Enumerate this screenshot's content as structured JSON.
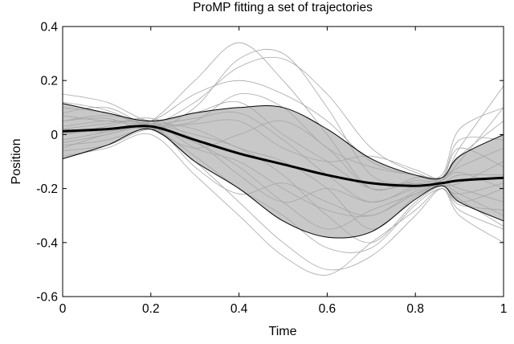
{
  "chart_data": {
    "type": "line",
    "title": "ProMP fitting a set of trajectories",
    "xlabel": "Time",
    "ylabel": "Position",
    "xlim": [
      0,
      1
    ],
    "ylim": [
      -0.6,
      0.4
    ],
    "xticks": [
      0,
      0.2,
      0.4,
      0.6,
      0.8,
      1
    ],
    "xtick_labels": [
      "0",
      "0.2",
      "0.4",
      "0.6",
      "0.8",
      "1"
    ],
    "yticks": [
      0.4,
      0.2,
      0,
      -0.2,
      -0.4,
      -0.6
    ],
    "ytick_labels": [
      "0.4",
      "0.2",
      "0",
      "-0.2",
      "-0.4",
      "-0.6"
    ],
    "grid": false,
    "legend": "none",
    "x": [
      0,
      0.1,
      0.2,
      0.3,
      0.4,
      0.5,
      0.6,
      0.7,
      0.8,
      0.86,
      0.9,
      1.0
    ],
    "mean": [
      0.012,
      0.02,
      0.03,
      -0.02,
      -0.07,
      -0.11,
      -0.15,
      -0.18,
      -0.19,
      -0.18,
      -0.17,
      -0.16
    ],
    "upper": [
      0.115,
      0.08,
      0.05,
      0.08,
      0.1,
      0.1,
      0.02,
      -0.09,
      -0.15,
      -0.16,
      -0.08,
      0.0
    ],
    "lower": [
      -0.09,
      -0.04,
      0.02,
      -0.1,
      -0.2,
      -0.32,
      -0.38,
      -0.36,
      -0.24,
      -0.19,
      -0.25,
      -0.32
    ],
    "series": [
      {
        "values": [
          0.05,
          0.06,
          0.02,
          0.1,
          0.28,
          0.3,
          0.1,
          -0.15,
          -0.18,
          -0.17,
          -0.05,
          0.18
        ]
      },
      {
        "values": [
          -0.02,
          0.01,
          0.05,
          0.2,
          0.34,
          0.2,
          0.0,
          -0.2,
          -0.16,
          -0.16,
          -0.1,
          0.1
        ]
      },
      {
        "values": [
          0.1,
          0.08,
          0.04,
          0.12,
          0.25,
          0.28,
          0.15,
          -0.05,
          -0.14,
          -0.15,
          0.02,
          0.1
        ]
      },
      {
        "values": [
          0.0,
          0.02,
          0.03,
          0.05,
          0.15,
          0.1,
          -0.05,
          -0.12,
          -0.15,
          -0.16,
          -0.12,
          -0.05
        ]
      },
      {
        "values": [
          0.02,
          0.04,
          0.05,
          -0.05,
          -0.1,
          -0.2,
          -0.28,
          -0.3,
          -0.22,
          -0.18,
          -0.2,
          -0.25
        ]
      },
      {
        "values": [
          -0.05,
          0.0,
          0.02,
          -0.1,
          -0.25,
          -0.4,
          -0.5,
          -0.45,
          -0.3,
          -0.2,
          -0.28,
          -0.35
        ]
      },
      {
        "values": [
          0.03,
          0.05,
          0.04,
          0.0,
          -0.05,
          -0.15,
          -0.3,
          -0.4,
          -0.25,
          -0.19,
          -0.22,
          -0.3
        ]
      },
      {
        "values": [
          -0.08,
          -0.05,
          0.0,
          -0.15,
          -0.3,
          -0.45,
          -0.52,
          -0.4,
          -0.28,
          -0.2,
          -0.3,
          -0.4
        ]
      },
      {
        "values": [
          0.08,
          0.1,
          0.03,
          0.04,
          0.05,
          -0.05,
          -0.1,
          -0.08,
          -0.13,
          -0.16,
          -0.05,
          -0.12
        ]
      },
      {
        "values": [
          0.15,
          0.12,
          0.05,
          0.08,
          0.12,
          0.0,
          -0.1,
          -0.2,
          -0.18,
          -0.17,
          -0.14,
          -0.2
        ]
      },
      {
        "values": [
          0.0,
          0.03,
          0.06,
          -0.02,
          -0.15,
          -0.25,
          -0.2,
          -0.25,
          -0.2,
          -0.18,
          -0.25,
          -0.2
        ]
      },
      {
        "values": [
          -0.03,
          0.0,
          0.04,
          0.02,
          -0.05,
          -0.1,
          -0.2,
          -0.35,
          -0.23,
          -0.19,
          -0.18,
          -0.1
        ]
      },
      {
        "values": [
          0.05,
          0.07,
          0.03,
          -0.08,
          -0.2,
          -0.3,
          -0.42,
          -0.42,
          -0.26,
          -0.2,
          -0.26,
          -0.28
        ]
      },
      {
        "values": [
          0.12,
          0.09,
          0.02,
          -0.05,
          0.0,
          0.05,
          -0.05,
          -0.2,
          -0.17,
          -0.17,
          -0.08,
          0.05
        ]
      },
      {
        "values": [
          -0.04,
          -0.02,
          0.03,
          0.06,
          0.08,
          -0.02,
          -0.15,
          -0.25,
          -0.19,
          -0.18,
          -0.15,
          -0.15
        ]
      },
      {
        "values": [
          0.02,
          0.01,
          0.04,
          -0.12,
          -0.22,
          -0.18,
          -0.25,
          -0.3,
          -0.21,
          -0.19,
          -0.22,
          -0.18
        ]
      },
      {
        "values": [
          0.07,
          0.05,
          0.05,
          0.15,
          0.2,
          0.15,
          0.05,
          -0.1,
          -0.15,
          -0.16,
          -0.02,
          -0.02
        ]
      },
      {
        "values": [
          -0.06,
          -0.04,
          0.02,
          -0.03,
          -0.12,
          -0.25,
          -0.35,
          -0.28,
          -0.22,
          -0.19,
          -0.24,
          -0.34
        ]
      }
    ]
  }
}
